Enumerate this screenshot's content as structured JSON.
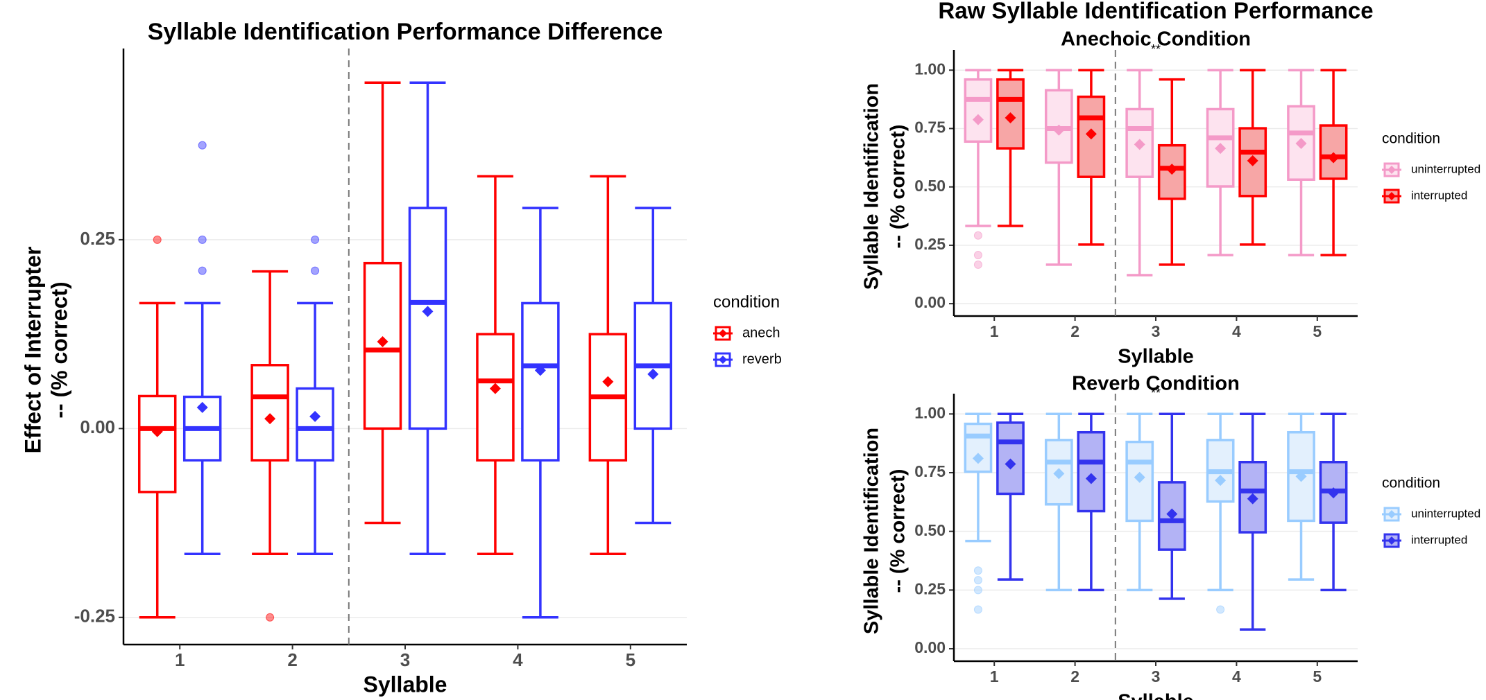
{
  "chart_data": [
    {
      "type": "box",
      "title": "Syllable Identification Performance Difference",
      "x_label": "Syllable",
      "y_label": [
        "Effect of Interrupter",
        "-- (% correct)"
      ],
      "categories": [
        "1",
        "2",
        "3",
        "4",
        "5"
      ],
      "ylim": [
        -0.286,
        0.494
      ],
      "yticks": [
        {
          "value": -0.25,
          "label": "-0.25"
        },
        {
          "value": 0,
          "label": "0.00"
        },
        {
          "value": 0.25,
          "label": "0.25"
        }
      ],
      "grid": true,
      "legend": "right",
      "legend_title": "condition",
      "series": [
        {
          "name": "anech",
          "color": "#ff0000",
          "boxes": [
            {
              "whislo": -0.25,
              "q1": -0.084,
              "med": 0,
              "q3": 0.043,
              "whishi": 0.166,
              "mean": -0.004,
              "outliers": [
                0.25
              ]
            },
            {
              "whislo": -0.166,
              "q1": -0.042,
              "med": 0.042,
              "q3": 0.084,
              "whishi": 0.208,
              "mean": 0.013,
              "outliers": [
                -0.25
              ]
            },
            {
              "whislo": -0.125,
              "q1": 0,
              "med": 0.104,
              "q3": 0.219,
              "whishi": 0.458,
              "mean": 0.115,
              "outliers": []
            },
            {
              "whislo": -0.166,
              "q1": -0.042,
              "med": 0.063,
              "q3": 0.125,
              "whishi": 0.334,
              "mean": 0.053,
              "outliers": []
            },
            {
              "whislo": -0.166,
              "q1": -0.042,
              "med": 0.042,
              "q3": 0.125,
              "whishi": 0.334,
              "mean": 0.062,
              "outliers": []
            }
          ]
        },
        {
          "name": "reverb",
          "color": "#3333ff",
          "boxes": [
            {
              "whislo": -0.166,
              "q1": -0.042,
              "med": 0,
              "q3": 0.042,
              "whishi": 0.166,
              "mean": 0.028,
              "outliers": [
                0.375,
                0.25,
                0.209
              ]
            },
            {
              "whislo": -0.166,
              "q1": -0.042,
              "med": 0,
              "q3": 0.053,
              "whishi": 0.166,
              "mean": 0.016,
              "outliers": [
                0.25,
                0.209
              ]
            },
            {
              "whislo": -0.166,
              "q1": 0,
              "med": 0.167,
              "q3": 0.292,
              "whishi": 0.458,
              "mean": 0.155,
              "outliers": []
            },
            {
              "whislo": -0.25,
              "q1": -0.042,
              "med": 0.083,
              "q3": 0.166,
              "whishi": 0.292,
              "mean": 0.077,
              "outliers": []
            },
            {
              "whislo": -0.125,
              "q1": 0,
              "med": 0.083,
              "q3": 0.166,
              "whishi": 0.292,
              "mean": 0.072,
              "outliers": []
            }
          ]
        }
      ]
    },
    {
      "type": "box",
      "suptitle": "Raw Syllable Identification Performance",
      "title": "Anechoic Condition",
      "x_label": "Syllable",
      "y_label": [
        "Syllable Identification",
        "-- (% correct)"
      ],
      "categories": [
        "1",
        "2",
        "3",
        "4",
        "5"
      ],
      "ylim": [
        -0.053,
        1.057
      ],
      "yticks": [
        {
          "value": 0,
          "label": "0.00"
        },
        {
          "value": 0.25,
          "label": "0.25"
        },
        {
          "value": 0.5,
          "label": "0.50"
        },
        {
          "value": 0.75,
          "label": "0.75"
        },
        {
          "value": 1,
          "label": "1.00"
        }
      ],
      "grid": true,
      "legend": "right",
      "legend_title": "condition",
      "annotations": [
        {
          "x": "3",
          "text": "**"
        }
      ],
      "series": [
        {
          "name": "uninterrupted",
          "color": "#f49ac8",
          "fill": "#fde3ef",
          "boxes": [
            {
              "whislo": 0.333,
              "q1": 0.694,
              "med": 0.875,
              "q3": 0.96,
              "whishi": 1.0,
              "mean": 0.788,
              "outliers": [
                0.292,
                0.208,
                0.167
              ]
            },
            {
              "whislo": 0.167,
              "q1": 0.604,
              "med": 0.75,
              "q3": 0.914,
              "whishi": 1.0,
              "mean": 0.743,
              "outliers": []
            },
            {
              "whislo": 0.122,
              "q1": 0.543,
              "med": 0.75,
              "q3": 0.833,
              "whishi": 1.0,
              "mean": 0.682,
              "outliers": []
            },
            {
              "whislo": 0.208,
              "q1": 0.502,
              "med": 0.71,
              "q3": 0.833,
              "whishi": 1.0,
              "mean": 0.665,
              "outliers": []
            },
            {
              "whislo": 0.208,
              "q1": 0.531,
              "med": 0.731,
              "q3": 0.845,
              "whishi": 1.0,
              "mean": 0.686,
              "outliers": []
            }
          ]
        },
        {
          "name": "interrupted",
          "color": "#ff0000",
          "fill": "#f7a6a6",
          "boxes": [
            {
              "whislo": 0.333,
              "q1": 0.665,
              "med": 0.875,
              "q3": 0.96,
              "whishi": 1.0,
              "mean": 0.796,
              "outliers": []
            },
            {
              "whislo": 0.253,
              "q1": 0.543,
              "med": 0.796,
              "q3": 0.886,
              "whishi": 1.0,
              "mean": 0.727,
              "outliers": []
            },
            {
              "whislo": 0.167,
              "q1": 0.449,
              "med": 0.58,
              "q3": 0.678,
              "whishi": 0.96,
              "mean": 0.576,
              "outliers": []
            },
            {
              "whislo": 0.253,
              "q1": 0.461,
              "med": 0.649,
              "q3": 0.751,
              "whishi": 1.0,
              "mean": 0.612,
              "outliers": []
            },
            {
              "whislo": 0.208,
              "q1": 0.535,
              "med": 0.629,
              "q3": 0.763,
              "whishi": 1.0,
              "mean": 0.625,
              "outliers": []
            }
          ]
        }
      ]
    },
    {
      "type": "box",
      "title": "Reverb Condition",
      "x_label": "Syllable",
      "y_label": [
        "Syllable Identification",
        "-- (% correct)"
      ],
      "categories": [
        "1",
        "2",
        "3",
        "4",
        "5"
      ],
      "ylim": [
        -0.053,
        1.057
      ],
      "yticks": [
        {
          "value": 0,
          "label": "0.00"
        },
        {
          "value": 0.25,
          "label": "0.25"
        },
        {
          "value": 0.5,
          "label": "0.50"
        },
        {
          "value": 0.75,
          "label": "0.75"
        },
        {
          "value": 1,
          "label": "1.00"
        }
      ],
      "grid": true,
      "legend": "right",
      "legend_title": "condition",
      "annotations": [
        {
          "x": "3",
          "text": "**"
        }
      ],
      "series": [
        {
          "name": "uninterrupted",
          "color": "#99ccff",
          "fill": "#e3f0fd",
          "boxes": [
            {
              "whislo": 0.459,
              "q1": 0.754,
              "med": 0.906,
              "q3": 0.958,
              "whishi": 1.0,
              "mean": 0.811,
              "outliers": [
                0.333,
                0.292,
                0.25,
                0.167
              ]
            },
            {
              "whislo": 0.25,
              "q1": 0.615,
              "med": 0.795,
              "q3": 0.889,
              "whishi": 1.0,
              "mean": 0.746,
              "outliers": []
            },
            {
              "whislo": 0.25,
              "q1": 0.545,
              "med": 0.795,
              "q3": 0.881,
              "whishi": 1.0,
              "mean": 0.73,
              "outliers": []
            },
            {
              "whislo": 0.25,
              "q1": 0.627,
              "med": 0.754,
              "q3": 0.889,
              "whishi": 1.0,
              "mean": 0.717,
              "outliers": [
                0.167
              ]
            },
            {
              "whislo": 0.295,
              "q1": 0.545,
              "med": 0.754,
              "q3": 0.922,
              "whishi": 1.0,
              "mean": 0.734,
              "outliers": []
            }
          ]
        },
        {
          "name": "interrupted",
          "color": "#3333ee",
          "fill": "#b3b3f5",
          "boxes": [
            {
              "whislo": 0.295,
              "q1": 0.66,
              "med": 0.881,
              "q3": 0.963,
              "whishi": 1.0,
              "mean": 0.787,
              "outliers": []
            },
            {
              "whislo": 0.25,
              "q1": 0.586,
              "med": 0.795,
              "q3": 0.922,
              "whishi": 1.0,
              "mean": 0.725,
              "outliers": []
            },
            {
              "whislo": 0.213,
              "q1": 0.422,
              "med": 0.545,
              "q3": 0.709,
              "whishi": 1.0,
              "mean": 0.574,
              "outliers": []
            },
            {
              "whislo": 0.082,
              "q1": 0.496,
              "med": 0.672,
              "q3": 0.795,
              "whishi": 1.0,
              "mean": 0.639,
              "outliers": []
            },
            {
              "whislo": 0.25,
              "q1": 0.537,
              "med": 0.672,
              "q3": 0.795,
              "whishi": 1.0,
              "mean": 0.664,
              "outliers": []
            }
          ]
        }
      ]
    }
  ]
}
